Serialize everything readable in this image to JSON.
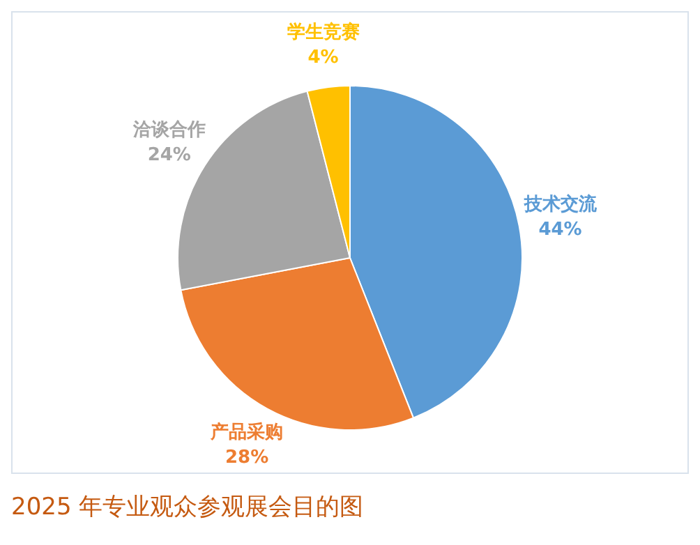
{
  "chart_data": {
    "type": "pie",
    "title": "2025 年专业观众参观展会目的图",
    "categories": [
      "技术交流",
      "产品采购",
      "洽谈合作",
      "学生竞赛"
    ],
    "values": [
      44,
      28,
      24,
      4
    ],
    "value_labels": [
      "44%",
      "28%",
      "24%",
      "4%"
    ],
    "colors": [
      "#5b9bd5",
      "#ed7d31",
      "#a5a5a5",
      "#ffc000"
    ],
    "legend": false
  }
}
